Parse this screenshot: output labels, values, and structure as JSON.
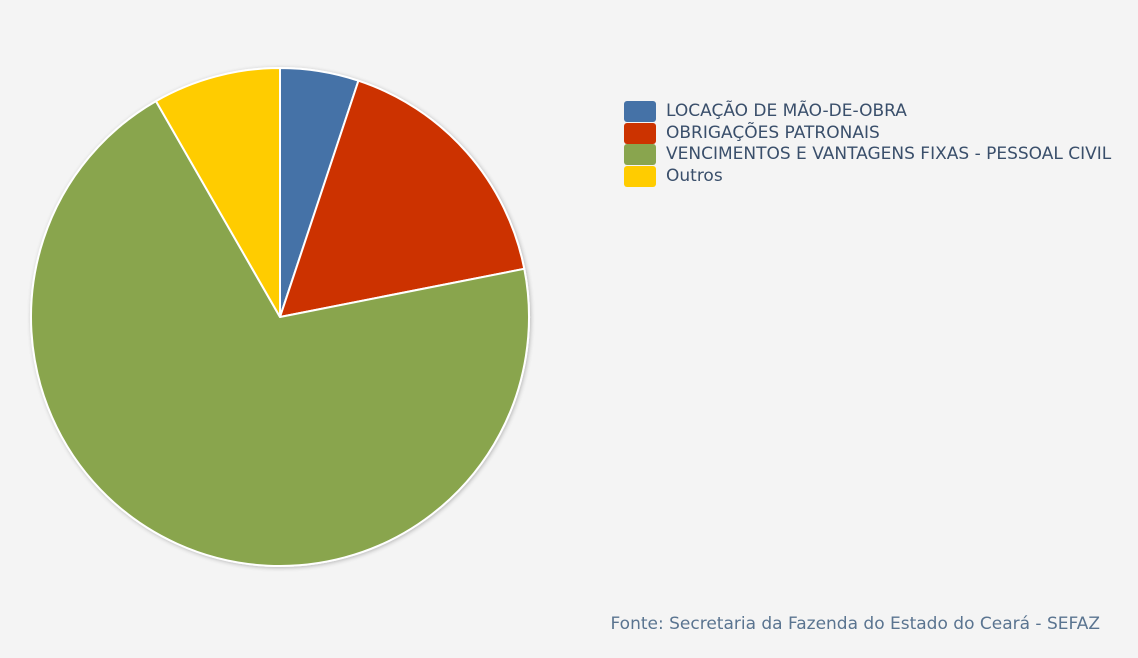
{
  "chart_data": {
    "type": "pie",
    "slices": [
      {
        "label": "LOCAÇÃO DE MÃO-DE-OBRA",
        "value": 5.1,
        "color": "#4572a7"
      },
      {
        "label": "OBRIGAÇÕES PATRONAIS",
        "value": 16.8,
        "color": "#cc3300"
      },
      {
        "label": "VENCIMENTOS E VANTAGENS FIXAS - PESSOAL CIVIL",
        "value": 69.8,
        "color": "#89a54e"
      },
      {
        "label": "Outros",
        "value": 8.3,
        "color": "#ffcc00"
      }
    ],
    "legend_position": "top-right",
    "source": "Fonte: Secretaria da Fazenda do Estado do Ceará - SEFAZ"
  }
}
